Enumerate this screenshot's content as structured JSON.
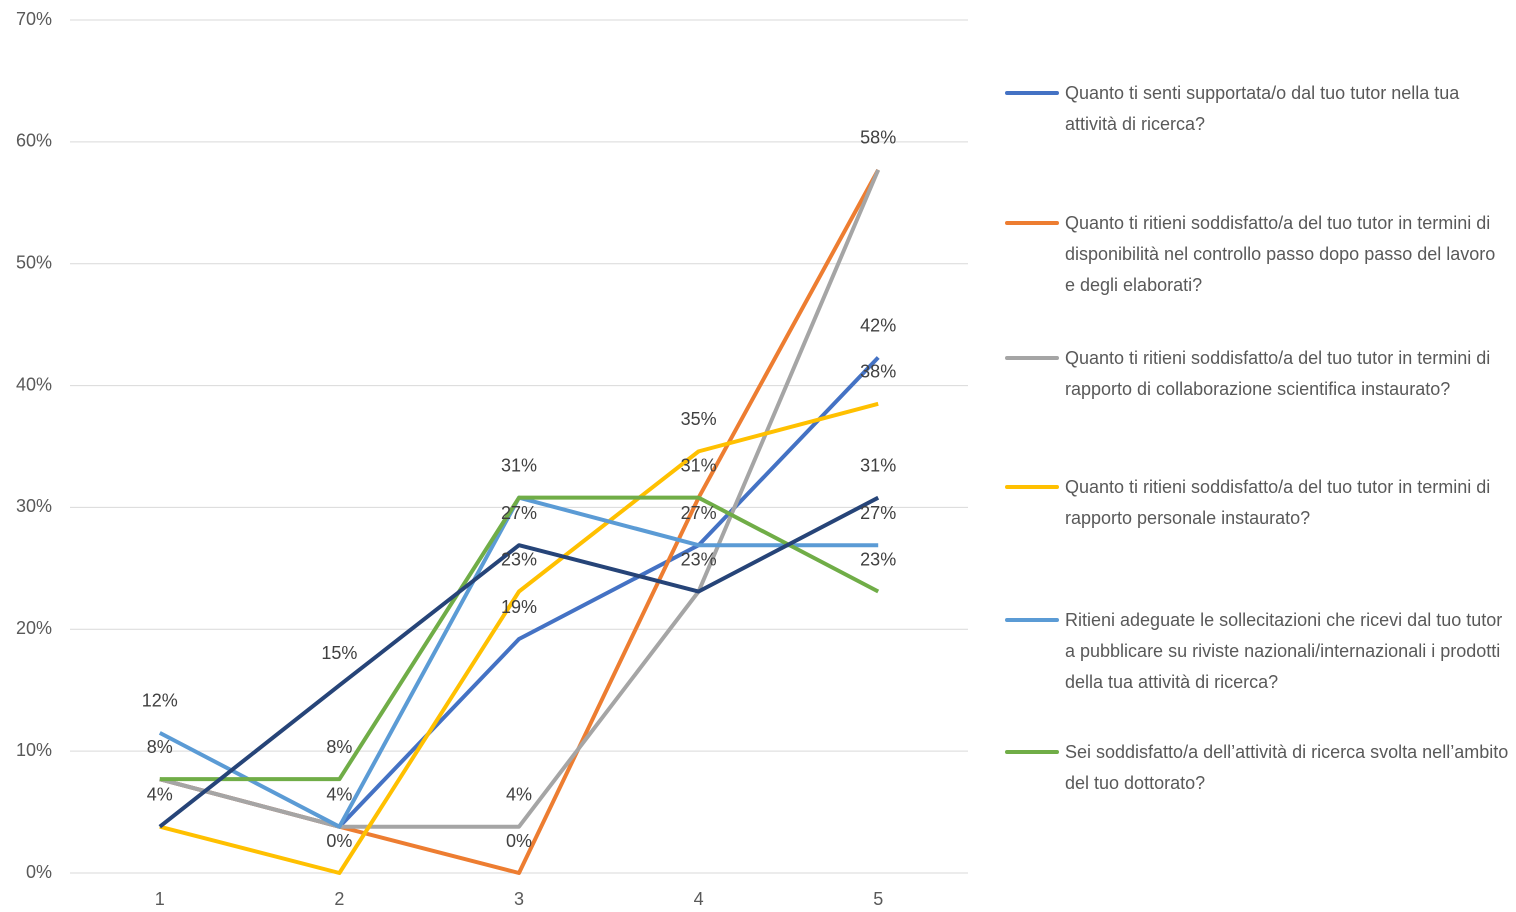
{
  "chart_data": {
    "type": "line",
    "categories": [
      "1",
      "2",
      "3",
      "4",
      "5"
    ],
    "ylim": [
      0,
      70
    ],
    "yticks": [
      {
        "value": 0,
        "label": "0%"
      },
      {
        "value": 10,
        "label": "10%"
      },
      {
        "value": 20,
        "label": "20%"
      },
      {
        "value": 30,
        "label": "30%"
      },
      {
        "value": 40,
        "label": "40%"
      },
      {
        "value": 50,
        "label": "50%"
      },
      {
        "value": 60,
        "label": "60%"
      },
      {
        "value": 70,
        "label": "70%"
      }
    ],
    "grid": true,
    "legend": "right",
    "series": [
      {
        "name": "Quanto ti senti supportata/o dal tuo tutor nella tua attività di ricerca?",
        "color": "#4472c4",
        "values": [
          7.7,
          3.8,
          19.2,
          26.9,
          42.3
        ],
        "value_labels": [
          null,
          "4%",
          "19%",
          "27%",
          "42%"
        ]
      },
      {
        "name": "Quanto ti ritieni soddisfatto/a del tuo tutor in termini di disponibilità nel controllo passo dopo passo del lavoro e degli elaborati?",
        "color": "#ed7d31",
        "values": [
          7.7,
          3.8,
          0,
          30.8,
          57.7
        ],
        "value_labels": [
          "8%",
          null,
          "0%",
          "31%",
          "58%"
        ]
      },
      {
        "name": "Quanto ti ritieni soddisfatto/a del tuo tutor in termini di rapporto di collaborazione scientifica instaurato?",
        "color": "#a5a5a5",
        "values": [
          7.7,
          3.8,
          3.8,
          23.1,
          57.7
        ],
        "value_labels": [
          null,
          null,
          "4%",
          "23%",
          null
        ]
      },
      {
        "name": "Quanto ti ritieni soddisfatto/a del tuo tutor in termini di rapporto personale instaurato?",
        "color": "#ffc000",
        "values": [
          3.8,
          0,
          23.1,
          34.6,
          38.5
        ],
        "value_labels": [
          null,
          "0%",
          "23%",
          "35%",
          "38%"
        ]
      },
      {
        "name": "Ritieni adeguate le sollecitazioni che ricevi dal tuo tutor a pubblicare su riviste nazionali/internazionali i prodotti della tua attività di ricerca?",
        "color": "#5b9bd5",
        "values": [
          11.5,
          3.8,
          30.8,
          26.9,
          26.9
        ],
        "value_labels": [
          "12%",
          null,
          null,
          null,
          "27%"
        ]
      },
      {
        "name": "Sei soddisfatto/a dell’attività di ricerca svolta nell’ambito del tuo dottorato?",
        "color": "#70ad47",
        "values": [
          7.7,
          7.7,
          30.8,
          30.8,
          23.1
        ],
        "value_labels": [
          null,
          "8%",
          "31%",
          null,
          "23%"
        ]
      },
      {
        "color": "#264478",
        "values": [
          3.8,
          15.4,
          26.9,
          23.1,
          30.8
        ],
        "value_labels": [
          "4%",
          "15%",
          "27%",
          null,
          "31%"
        ]
      }
    ]
  }
}
